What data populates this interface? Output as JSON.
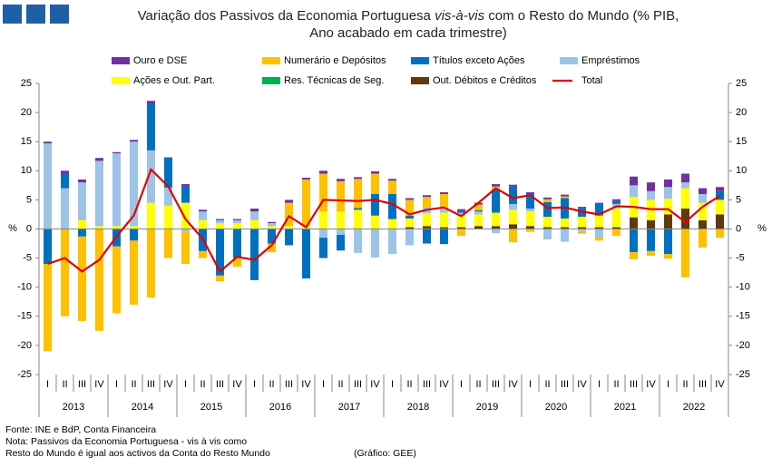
{
  "chart_data": {
    "type": "bar",
    "title": {
      "before": "Variação dos Passivos da Economia Portuguesa ",
      "italic": "vis-à-vis",
      "after": " com o Resto do Mundo (% PIB,",
      "line2": "Ano acabado em cada trimestre)"
    },
    "y_label": "%",
    "categories": [
      "I",
      "II",
      "III",
      "IV",
      "I",
      "II",
      "III",
      "IV",
      "I",
      "II",
      "III",
      "IV",
      "I",
      "II",
      "III",
      "IV",
      "I",
      "II",
      "III",
      "IV",
      "I",
      "II",
      "III",
      "IV",
      "I",
      "II",
      "III",
      "IV",
      "I",
      "II",
      "III",
      "IV",
      "I",
      "II",
      "III",
      "IV",
      "I",
      "II",
      "III",
      "IV"
    ],
    "years": [
      "2013",
      "2014",
      "2015",
      "2016",
      "2017",
      "2018",
      "2019",
      "2020",
      "2021",
      "2022"
    ],
    "ylim": [
      -25,
      25
    ],
    "yticks": [
      25,
      20,
      15,
      10,
      5,
      0,
      -5,
      -10,
      -15,
      -20,
      -25
    ],
    "series": [
      {
        "name": "Ouro e DSE",
        "color": "#7030a0",
        "values": [
          0.3,
          0.5,
          0.5,
          0.5,
          0.2,
          0.3,
          0.5,
          0,
          0.4,
          0.3,
          0.2,
          0.2,
          0.5,
          0.2,
          0.5,
          0.3,
          0.5,
          0.4,
          0.3,
          0.4,
          0.3,
          0.3,
          0.3,
          0.3,
          0.3,
          0.3,
          0.4,
          0.3,
          0.3,
          0.3,
          0.3,
          0.2,
          0.2,
          0.3,
          1.5,
          1.5,
          1.3,
          1.5,
          1,
          0.7
        ]
      },
      {
        "name": "Numerário e Depósitos",
        "color": "#ffc000",
        "values": [
          -15,
          -15,
          -14.5,
          -17.5,
          -11.5,
          -11,
          -11.8,
          -5,
          -5.5,
          -1.2,
          -1,
          -1.5,
          0,
          -1.5,
          4,
          8,
          6.5,
          5.2,
          5,
          3.5,
          2.3,
          2.7,
          1.8,
          2.2,
          -1.2,
          1,
          0.5,
          -2.3,
          -0.5,
          0.5,
          0.3,
          -0.3,
          -0.5,
          -1.2,
          -1.2,
          -0.8,
          -0.8,
          -8.3,
          -3.2,
          -1.5
        ]
      },
      {
        "name": "Títulos exceto Ações",
        "color": "#0070c0",
        "values": [
          -6,
          2.5,
          -1.3,
          0,
          -3,
          -2,
          8,
          5.2,
          2.8,
          -3.8,
          -8,
          -5,
          -8.8,
          -2.5,
          -2.8,
          -8.5,
          -3.5,
          -2.7,
          0.3,
          3.7,
          4.3,
          0.5,
          -2.5,
          -2.6,
          0.3,
          0.2,
          4,
          3,
          2.5,
          2.5,
          3.5,
          1.5,
          2,
          0.5,
          -4,
          -3.8,
          -4.3,
          0,
          0,
          1.5
        ]
      },
      {
        "name": "Empréstimos",
        "color": "#9dc3e6",
        "values": [
          14.7,
          7,
          6.5,
          11.2,
          12.5,
          14.5,
          9,
          3.1,
          -0.5,
          1.5,
          0.5,
          0.5,
          1.5,
          0.5,
          0,
          0,
          -1.5,
          -1,
          -4.1,
          -4.9,
          -4.3,
          -2.8,
          1,
          1,
          0.5,
          0.5,
          -0.7,
          1,
          0.5,
          -1.8,
          -2.2,
          -0.5,
          -1.5,
          0.8,
          2,
          1.5,
          2,
          1,
          1.5,
          0
        ]
      },
      {
        "name": "Ações e Out. Part.",
        "color": "#ffff00",
        "values": [
          0,
          0,
          1.5,
          0.5,
          0.5,
          0.5,
          4.5,
          4,
          4.5,
          1.5,
          1,
          1,
          1.5,
          0.5,
          0.5,
          0.5,
          3,
          3,
          3.3,
          2.3,
          1.7,
          1.5,
          2.2,
          2.5,
          2,
          2,
          2.3,
          2.5,
          2.5,
          1.8,
          1.5,
          1.8,
          2,
          3.2,
          3.5,
          3.5,
          2.7,
          3.5,
          3,
          2.5
        ]
      },
      {
        "name": "Res. Técnicas de Seg.",
        "color": "#00b050",
        "values": [
          0,
          0,
          0,
          0,
          0,
          0,
          0,
          0,
          0,
          0,
          0,
          0,
          0,
          0,
          0,
          0,
          0,
          0,
          0,
          0,
          0,
          0,
          0,
          0,
          0,
          0,
          0,
          0,
          0,
          0,
          0,
          0,
          0,
          0,
          0,
          0,
          0,
          0,
          0,
          0
        ]
      },
      {
        "name": "Out. Débitos e Créditos",
        "color": "#603a0c",
        "values": [
          0,
          0,
          0,
          0,
          0,
          0,
          0,
          0,
          0,
          0,
          0,
          0,
          0,
          0,
          0,
          0,
          0,
          0,
          0,
          0,
          0,
          0.3,
          0.5,
          0.3,
          0.3,
          0.5,
          0.5,
          0.8,
          0.5,
          0.3,
          0.3,
          0.3,
          0.3,
          0.3,
          2,
          1.5,
          2.5,
          3.5,
          1.5,
          2.5
        ]
      },
      {
        "name": "Total",
        "color": "#e00000",
        "type": "line",
        "values": [
          -6,
          -5,
          -7.3,
          -5.3,
          -1.3,
          2.3,
          10.2,
          7.3,
          1.7,
          -1.7,
          -7.3,
          -4.8,
          -5.3,
          -2.8,
          2.2,
          0.3,
          5,
          4.9,
          4.8,
          5,
          4.3,
          2.5,
          3.3,
          3.7,
          2.2,
          4.5,
          7,
          5.3,
          5.8,
          3.6,
          3.7,
          3,
          2.5,
          3.9,
          3.8,
          3.4,
          3.4,
          1.2,
          3.8,
          5.7
        ]
      }
    ],
    "notes": [
      "Fonte: INE e BdP, Conta Financeira",
      "Nota: Passivos da Economia Portuguesa - vis à vis como",
      "Resto do Mundo é igual aos activos da Conta do Resto Mundo"
    ],
    "credit": "(Gráfico: GEE)"
  }
}
